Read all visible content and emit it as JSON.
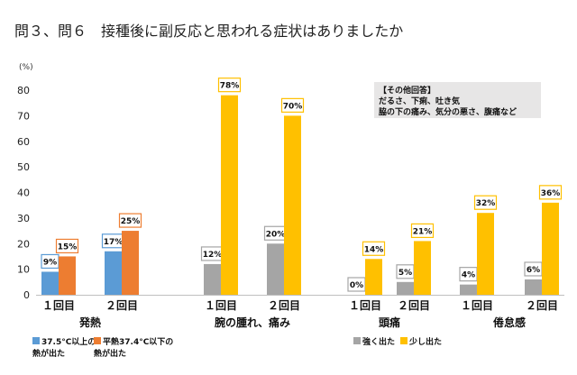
{
  "title": "問３、問６　接種後に副反応と思われる症状はありましたか",
  "unit_label": "(%)",
  "note": {
    "heading": "【その他回答】",
    "lines": [
      "だるさ、下痢、吐き気",
      "脇の下の痛み、気分の悪さ、腹痛など"
    ]
  },
  "colors": {
    "blue": "#5b9bd5",
    "orange": "#ed7d31",
    "gray": "#a5a5a5",
    "yellow": "#ffc000",
    "note_bg": "#e7e6e6"
  },
  "chart_data": {
    "type": "bar",
    "title": "問３、問６　接種後に副反応と思われる症状はありましたか",
    "ylabel": "(%)",
    "ylim": [
      0,
      80
    ],
    "yticks": [
      0,
      10,
      20,
      30,
      40,
      50,
      60,
      70,
      80
    ],
    "grid": false,
    "legend_position": "bottom",
    "groups": [
      {
        "name": "発熱",
        "categories": [
          "１回目",
          "２回目"
        ],
        "series": [
          {
            "name": "37.5°C以上の熱が出た",
            "color": "#5b9bd5",
            "values": [
              9,
              17
            ]
          },
          {
            "name": "平熱37.4°C以下の熱が出た",
            "color": "#ed7d31",
            "values": [
              15,
              25
            ]
          }
        ]
      },
      {
        "name": "腕の腫れ、痛み",
        "categories": [
          "１回目",
          "２回目"
        ],
        "series": [
          {
            "name": "強く出た",
            "color": "#a5a5a5",
            "values": [
              12,
              20
            ]
          },
          {
            "name": "少し出た",
            "color": "#ffc000",
            "values": [
              78,
              70
            ]
          }
        ]
      },
      {
        "name": "頭痛",
        "categories": [
          "１回目",
          "２回目"
        ],
        "series": [
          {
            "name": "強く出た",
            "color": "#a5a5a5",
            "values": [
              0,
              5
            ]
          },
          {
            "name": "少し出た",
            "color": "#ffc000",
            "values": [
              14,
              21
            ]
          }
        ]
      },
      {
        "name": "倦怠感",
        "categories": [
          "１回目",
          "２回目"
        ],
        "series": [
          {
            "name": "強く出た",
            "color": "#a5a5a5",
            "values": [
              4,
              6
            ]
          },
          {
            "name": "少し出た",
            "color": "#ffc000",
            "values": [
              32,
              36
            ]
          }
        ]
      }
    ],
    "legend": [
      {
        "lines": [
          "37.5°C以上の",
          "熱が出た"
        ],
        "color": "#5b9bd5"
      },
      {
        "lines": [
          "平熱37.4°C以下の",
          "熱が出た"
        ],
        "color": "#ed7d31"
      },
      {
        "lines": [
          "強く出た"
        ],
        "color": "#a5a5a5"
      },
      {
        "lines": [
          "少し出た"
        ],
        "color": "#ffc000"
      }
    ]
  }
}
